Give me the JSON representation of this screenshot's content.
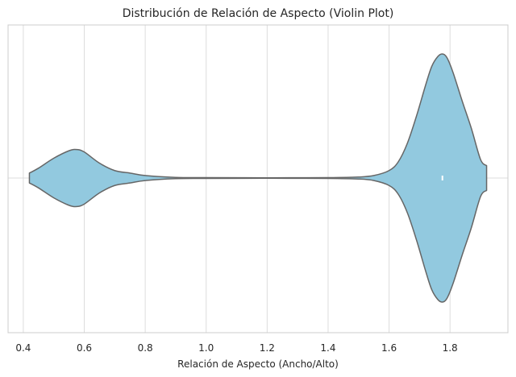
{
  "chart_data": {
    "type": "violin",
    "title": "Distribución de Relación de Aspecto (Violin Plot)",
    "xlabel": "Relación de Aspecto (Ancho/Alto)",
    "ylabel": "",
    "xlim": [
      0.35,
      1.99
    ],
    "x_ticks": [
      0.4,
      0.6,
      0.8,
      1.0,
      1.2,
      1.4,
      1.6,
      1.8
    ],
    "x_tick_labels": [
      "0.4",
      "0.6",
      "0.8",
      "1.0",
      "1.2",
      "1.4",
      "1.6",
      "1.8"
    ],
    "grid": true,
    "orientation": "horizontal",
    "fill_color": "#92c9df",
    "edge_color": "#666666",
    "density": {
      "x": [
        0.42,
        0.45,
        0.5,
        0.55,
        0.575,
        0.6,
        0.65,
        0.7,
        0.75,
        0.8,
        0.9,
        1.0,
        1.2,
        1.4,
        1.5,
        1.55,
        1.6,
        1.63,
        1.66,
        1.69,
        1.72,
        1.74,
        1.76,
        1.775,
        1.79,
        1.81,
        1.84,
        1.87,
        1.9,
        1.92
      ],
      "width": [
        0.04,
        0.08,
        0.16,
        0.22,
        0.23,
        0.21,
        0.12,
        0.06,
        0.04,
        0.02,
        0.005,
        0.003,
        0.002,
        0.003,
        0.008,
        0.02,
        0.06,
        0.13,
        0.28,
        0.5,
        0.75,
        0.9,
        0.98,
        1.0,
        0.97,
        0.85,
        0.62,
        0.4,
        0.15,
        0.1
      ]
    },
    "median": 1.775
  }
}
